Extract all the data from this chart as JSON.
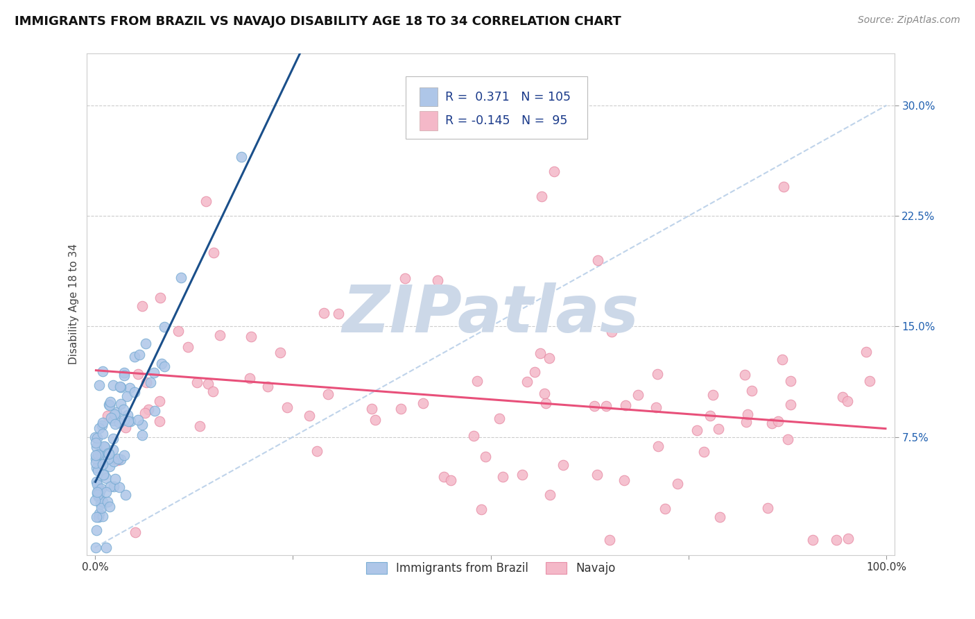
{
  "title": "IMMIGRANTS FROM BRAZIL VS NAVAJO DISABILITY AGE 18 TO 34 CORRELATION CHART",
  "source": "Source: ZipAtlas.com",
  "ylabel": "Disability Age 18 to 34",
  "xlabel": "",
  "xlim": [
    -0.01,
    1.01
  ],
  "ylim": [
    -0.005,
    0.335
  ],
  "yticks": [
    0.075,
    0.15,
    0.225,
    0.3
  ],
  "ytick_labels": [
    "7.5%",
    "15.0%",
    "22.5%",
    "30.0%"
  ],
  "xtick_labels": [
    "0.0%",
    "100.0%"
  ],
  "blue_color": "#aec6e8",
  "blue_edge_color": "#7aadd4",
  "pink_color": "#f4b8c8",
  "pink_edge_color": "#e890a8",
  "blue_line_color": "#1a4f8a",
  "pink_line_color": "#e8507a",
  "dash_line_color": "#b8cfe8",
  "legend_text_color": "#1a3a8a",
  "R_blue": 0.371,
  "N_blue": 105,
  "R_pink": -0.145,
  "N_pink": 95,
  "watermark": "ZIPatlas",
  "watermark_color": "#ccd8e8",
  "legend_label_blue": "Immigrants from Brazil",
  "legend_label_pink": "Navajo",
  "title_fontsize": 13,
  "source_fontsize": 10,
  "axis_label_fontsize": 11,
  "tick_fontsize": 11,
  "dot_size": 110
}
